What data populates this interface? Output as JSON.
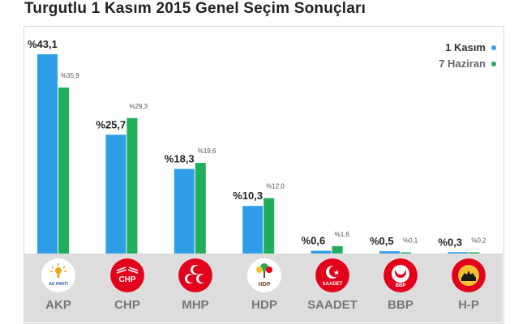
{
  "title": "Turgutlu 1 Kasım 2015 Genel Seçim Sonuçları",
  "legend": [
    {
      "label": "1 Kasım",
      "color": "#2f9ee8"
    },
    {
      "label": "7 Haziran",
      "color": "#1fae5a"
    }
  ],
  "chart_data": {
    "type": "bar",
    "categories": [
      "AKP",
      "CHP",
      "MHP",
      "HDP",
      "SAADET",
      "BBP",
      "H-P"
    ],
    "series": [
      {
        "name": "1 Kasım",
        "color": "#2f9ee8",
        "values": [
          43.1,
          25.7,
          18.3,
          10.3,
          0.6,
          0.5,
          0.3
        ],
        "labels": [
          "%43,1",
          "%25,7",
          "%18,3",
          "%10,3",
          "%0,6",
          "%0,5",
          "%0,3"
        ]
      },
      {
        "name": "7 Haziran",
        "color": "#1fae5a",
        "values": [
          35.9,
          29.3,
          19.6,
          12.0,
          1.6,
          0.1,
          0.2
        ],
        "labels": [
          "%35,9",
          "%29,3",
          "%19,6",
          "%12,0",
          "%1,6",
          "%0,1",
          "%0,2"
        ]
      }
    ],
    "ylim": [
      0,
      45
    ],
    "grid": false,
    "legend_position": "top-right"
  },
  "logos": [
    {
      "icon": "akp-logo-icon",
      "text": "AK PARTİ"
    },
    {
      "icon": "chp-logo-icon",
      "text": "CHP"
    },
    {
      "icon": "mhp-logo-icon",
      "text": ""
    },
    {
      "icon": "hdp-logo-icon",
      "text": "HDP"
    },
    {
      "icon": "saadet-logo-icon",
      "text": "SAADET"
    },
    {
      "icon": "bbp-logo-icon",
      "text": "BBP"
    },
    {
      "icon": "hp-logo-icon",
      "text": ""
    }
  ]
}
